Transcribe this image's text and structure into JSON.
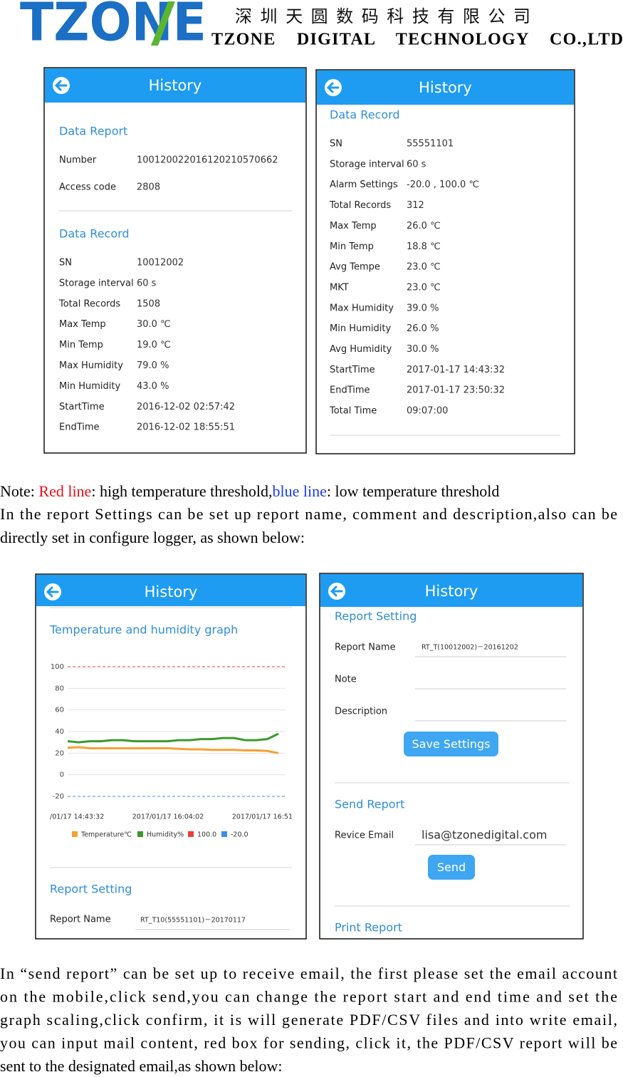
{
  "header": {
    "logo": "TZONE",
    "company_cn": "深 圳 天 圆 数 码 科 技 有 限 公 司",
    "company_en": "TZONE    DIGITAL    TECHNOLOGY    CO.,LTD"
  },
  "screens": [
    {
      "title": "History",
      "sections": [
        {
          "heading": "Data Report",
          "rows": [
            {
              "label": "Number",
              "value": "100120022016120210570662"
            },
            {
              "label": "Access code",
              "value": "2808"
            }
          ]
        },
        {
          "heading": "Data Record",
          "rows": [
            {
              "label": "SN",
              "value": "10012002"
            },
            {
              "label": "Storage interval",
              "value": "60 s"
            },
            {
              "label": "Total Records",
              "value": "1508"
            },
            {
              "label": "Max Temp",
              "value": "30.0 ℃"
            },
            {
              "label": "Min Temp",
              "value": "19.0 ℃"
            },
            {
              "label": "Max Humidity",
              "value": "79.0 %"
            },
            {
              "label": "Min Humidity",
              "value": "43.0 %"
            },
            {
              "label": "StartTime",
              "value": "2016-12-02 02:57:42"
            },
            {
              "label": "EndTime",
              "value": "2016-12-02 18:55:51"
            }
          ]
        }
      ]
    },
    {
      "title": "History",
      "sections": [
        {
          "heading": "Data Record",
          "rows": [
            {
              "label": "SN",
              "value": "55551101"
            },
            {
              "label": "Storage interval",
              "value": "60 s"
            },
            {
              "label": "Alarm Settings",
              "value": "-20.0 , 100.0 ℃"
            },
            {
              "label": "Total Records",
              "value": "312"
            },
            {
              "label": "Max Temp",
              "value": "26.0 ℃"
            },
            {
              "label": "Min Temp",
              "value": "18.8 ℃"
            },
            {
              "label": "Avg Tempe",
              "value": "23.0 ℃"
            },
            {
              "label": "MKT",
              "value": "23.0 ℃"
            },
            {
              "label": "Max Humidity",
              "value": "39.0 %"
            },
            {
              "label": "Min Humidity",
              "value": "26.0 %"
            },
            {
              "label": "Avg Humidity",
              "value": "30.0 %"
            },
            {
              "label": "StartTime",
              "value": "2017-01-17 14:43:32"
            },
            {
              "label": "EndTime",
              "value": "2017-01-17 23:50:32"
            },
            {
              "label": "Total Time",
              "value": "09:07:00"
            }
          ]
        }
      ]
    },
    {
      "title": "History",
      "graph": {
        "heading": "Temperature and humidity graph",
        "type": "line",
        "ylim": [
          -20,
          100
        ],
        "yticks": [
          100,
          80,
          60,
          40,
          20,
          0,
          -20
        ],
        "xtick_labels": [
          "/01/17 14:43:32",
          "2017/01/17 16:04:02",
          "2017/01/17 16:51"
        ],
        "series": [
          {
            "name": "Temperature℃",
            "color": "#f7a035",
            "values": [
              25,
              25.5,
              24.5,
              24.5,
              24.5,
              24.5,
              24.5,
              24.5,
              24.5,
              24.5,
              24,
              23.5,
              23.5,
              23,
              23,
              23,
              22.5,
              22.5,
              22,
              20
            ]
          },
          {
            "name": "Humidity%",
            "color": "#3a9a2c",
            "values": [
              31,
              30,
              31,
              31,
              32,
              32,
              31,
              31,
              31,
              31,
              32,
              32,
              33,
              33,
              34,
              34,
              32,
              32,
              33,
              38
            ]
          }
        ],
        "thresholds": [
          {
            "name": "100.0",
            "value": 100,
            "color": "#f03c3c"
          },
          {
            "name": "-20.0",
            "value": -20,
            "color": "#3a8cf0"
          }
        ]
      },
      "sections": [
        {
          "heading": "Report Setting",
          "rows": [
            {
              "label": "Report Name",
              "value": "RT_T10(55551101)－20170117"
            }
          ]
        }
      ]
    },
    {
      "title": "History",
      "sections": [
        {
          "heading": "Report Setting",
          "rows": [
            {
              "label": "Report Name",
              "value": "RT_T(10012002)－20161202"
            },
            {
              "label": "Note"
            },
            {
              "label": "Description"
            }
          ],
          "button": "Save Settings"
        },
        {
          "heading": "Send Report",
          "rows": [
            {
              "label": "Revice Email",
              "value": "lisa@tzonedigital.com"
            }
          ],
          "button": "Send"
        },
        {
          "heading": "Print Report"
        }
      ]
    }
  ],
  "note": {
    "segments": [
      {
        "text": "Note: "
      },
      {
        "text": "Red line",
        "color": "#e8101a"
      },
      {
        "text": ": high temperature threshold,"
      },
      {
        "text": "blue line",
        "color": "#1a3cf0"
      },
      {
        "text": ": low temperature threshold"
      }
    ],
    "lines": [
      "In the report Settings can be set up report name, comment and description,also can be",
      "directly set in configure logger, as shown below:"
    ]
  },
  "paragraph": {
    "lines": [
      "In “send report” can be set up to receive email, the first please set the email account",
      "on the mobile,click send,you can change the report start and end time and set the",
      "graph scaling,click confirm, it is will generate PDF/CSV files and into write email,",
      "you can input mail content, red box for sending, click it, the PDF/CSV report will be",
      "sent to the designated email,as shown below:"
    ]
  }
}
